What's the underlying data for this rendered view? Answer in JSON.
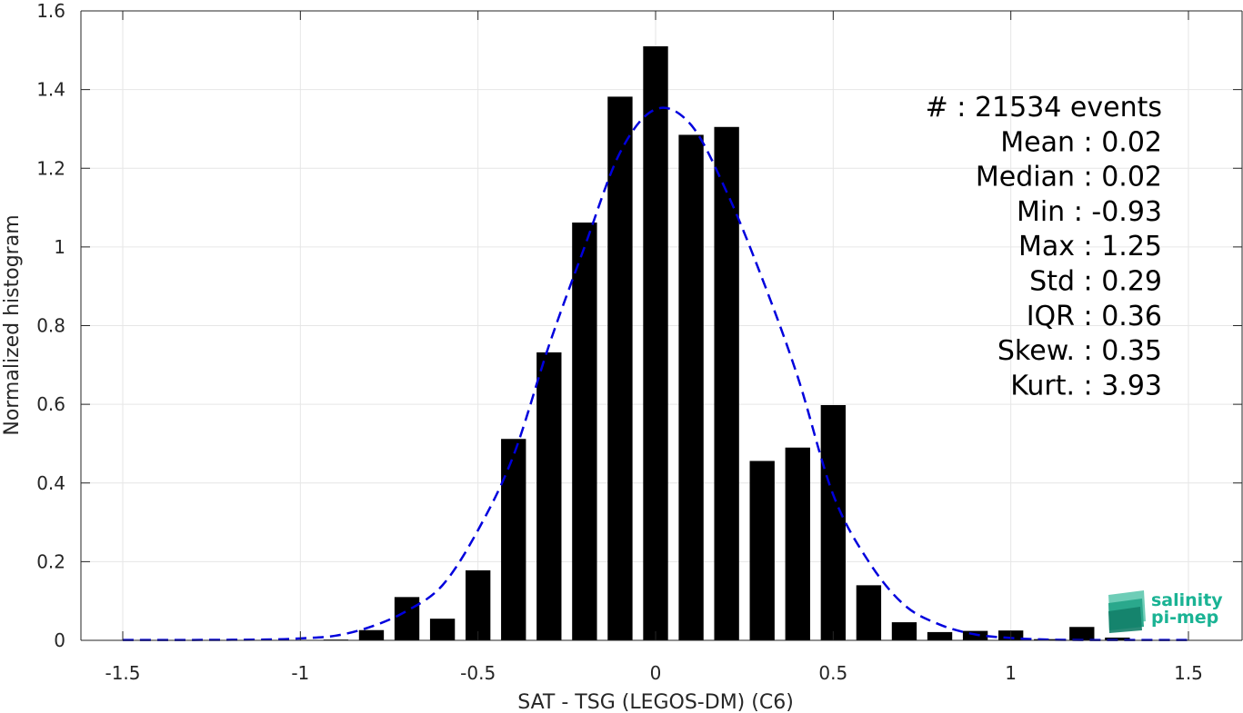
{
  "chart_data": {
    "type": "bar",
    "xlabel": "SAT - TSG (LEGOS-DM) (C6)",
    "ylabel": "Normalized histogram",
    "xlim": [
      -1.6,
      1.6
    ],
    "ylim": [
      0,
      1.6
    ],
    "grid": true,
    "xticks": [
      -1.5,
      -1,
      -0.5,
      0,
      0.5,
      1,
      1.5
    ],
    "xtick_labels": [
      "-1.5",
      "-1",
      "-0.5",
      "0",
      "0.5",
      "1",
      "1.5"
    ],
    "yticks": [
      0,
      0.2,
      0.4,
      0.6,
      0.8,
      1,
      1.2,
      1.4,
      1.6
    ],
    "ytick_labels": [
      "0",
      "0.2",
      "0.4",
      "0.6",
      "0.8",
      "1",
      "1.2",
      "1.4",
      "1.6"
    ],
    "bar_width": 0.07,
    "bar_color": "#000000",
    "bars": {
      "x": [
        -0.9,
        -0.8,
        -0.7,
        -0.6,
        -0.5,
        -0.4,
        -0.3,
        -0.2,
        -0.1,
        0.0,
        0.1,
        0.2,
        0.3,
        0.4,
        0.5,
        0.6,
        0.7,
        0.8,
        0.9,
        1.0,
        1.1,
        1.2,
        1.3
      ],
      "values": [
        0.002,
        0.026,
        0.11,
        0.055,
        0.178,
        0.512,
        0.732,
        1.062,
        1.382,
        1.51,
        1.285,
        1.305,
        0.456,
        0.49,
        0.598,
        0.14,
        0.046,
        0.021,
        0.024,
        0.025,
        0.003,
        0.034,
        0.007
      ]
    },
    "fit_curve": {
      "style": "dashed",
      "color": "#0000dd",
      "x": [
        -1.5,
        -1.3,
        -1.1,
        -1.0,
        -0.9,
        -0.8,
        -0.7,
        -0.6,
        -0.5,
        -0.4,
        -0.3,
        -0.2,
        -0.1,
        0.0,
        0.1,
        0.2,
        0.3,
        0.4,
        0.5,
        0.6,
        0.7,
        0.8,
        0.9,
        1.0,
        1.1,
        1.2,
        1.3,
        1.5
      ],
      "y": [
        0.001,
        0.001,
        0.002,
        0.005,
        0.012,
        0.035,
        0.075,
        0.14,
        0.28,
        0.47,
        0.75,
        1.0,
        1.24,
        1.35,
        1.31,
        1.14,
        0.92,
        0.67,
        0.37,
        0.2,
        0.09,
        0.04,
        0.015,
        0.006,
        0.002,
        0.001,
        0.001,
        0.001
      ]
    },
    "annotations": [
      "#  : 21534 events",
      "Mean : 0.02",
      "Median : 0.02",
      "Min : -0.93",
      "Max : 1.25",
      "Std : 0.29",
      "IQR : 0.36",
      "Skew. : 0.35",
      "Kurt. : 3.93"
    ]
  },
  "logo": {
    "line1": "salinity",
    "line2": "pi-mep",
    "color": "#1ab394"
  }
}
